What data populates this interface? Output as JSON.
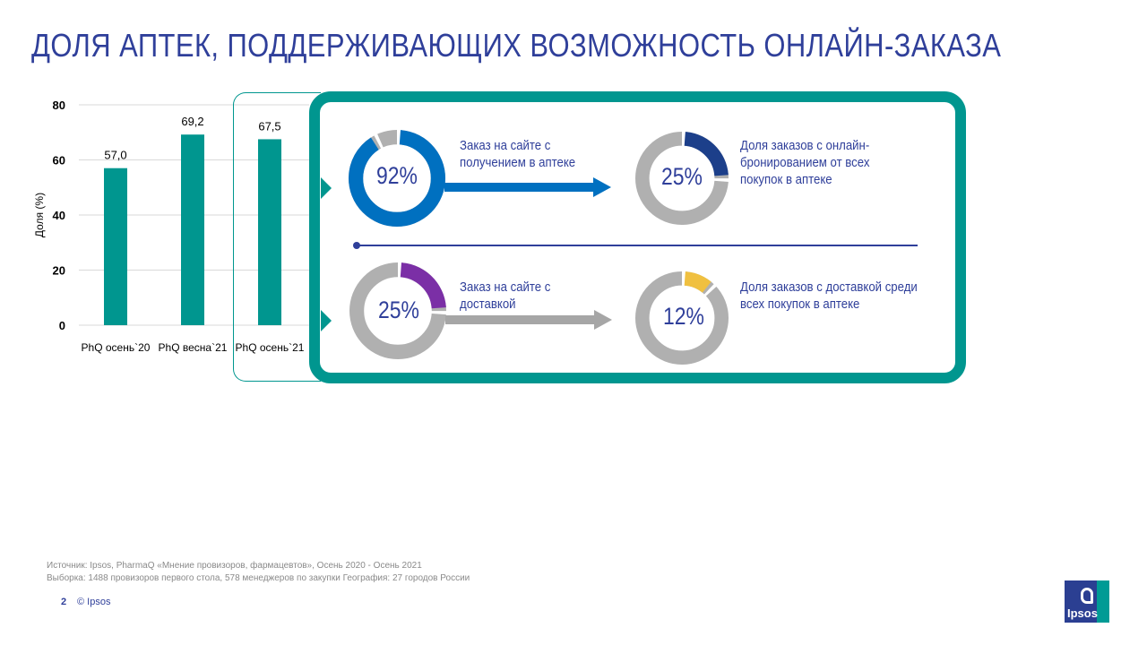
{
  "title": "ДОЛЯ АПТЕК, ПОДДЕРЖИВАЮЩИХ ВОЗМОЖНОСТЬ ОНЛАЙН-ЗАКАЗА",
  "chart_data": {
    "type": "bar",
    "categories": [
      "PhQ осень`20",
      "PhQ весна`21",
      "PhQ осень`21"
    ],
    "values": [
      57.0,
      69.2,
      67.5
    ],
    "value_labels": [
      "57,0",
      "69,2",
      "67,5"
    ],
    "ylabel": "Доля (%)",
    "ylim": [
      0,
      80
    ],
    "yticks": [
      "0",
      "20",
      "40",
      "60",
      "80"
    ],
    "grid": true,
    "bar_color": "#00968f"
  },
  "donuts": {
    "pickup": {
      "value": 92,
      "label": "92%",
      "color": "#0070c0",
      "desc": [
        "Заказ на сайте с",
        "получением в аптеке"
      ]
    },
    "pickup_share": {
      "value": 25,
      "label": "25%",
      "color": "#1c3f8a",
      "desc": [
        "Доля заказов с онлайн-",
        "бронированием от всех",
        "покупок в аптеке"
      ]
    },
    "delivery": {
      "value": 25,
      "label": "25%",
      "color": "#7b2fa6",
      "desc": [
        "Заказ на сайте с",
        "доставкой"
      ]
    },
    "delivery_share": {
      "value": 12,
      "label": "12%",
      "color": "#f0c040",
      "desc": [
        "Доля заказов с доставкой среди",
        "всех покупок в аптеке"
      ]
    }
  },
  "colors": {
    "accent": "#00968f",
    "text": "#2f3f9a",
    "donut_rest": "#b0b0b0",
    "arrow_blue": "#0070c0",
    "arrow_gray": "#a6a6a6"
  },
  "footer": {
    "source": "Источник: Ipsos, PharmaQ «Мнение провизоров, фармацевтов», Осень 2020 -  Осень 2021",
    "sample": "Выборка: 1488 провизоров первого стола, 578 менеджеров по закупки География: 27 городов России",
    "page": "2",
    "copyright": "© Ipsos",
    "logo": "Ipsos"
  }
}
